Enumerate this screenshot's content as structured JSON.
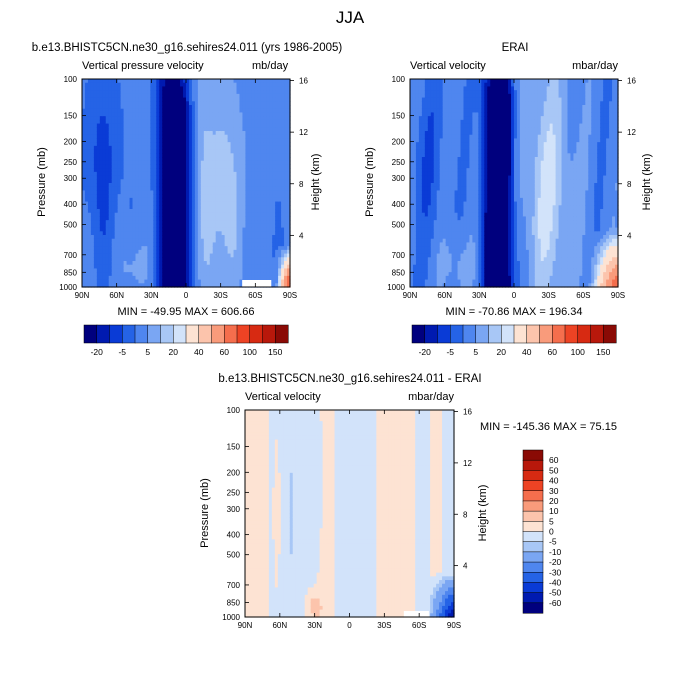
{
  "page": {
    "main_title": "JJA"
  },
  "colors": {
    "negative": [
      "#00007e",
      "#001ab0",
      "#0a3bd6",
      "#2563e6",
      "#4f86ef",
      "#7aa6f3",
      "#a8c7f6",
      "#d2e3fa"
    ],
    "positive": [
      "#fde3d3",
      "#fcc4ac",
      "#f99b7b",
      "#f56e4d",
      "#ed4324",
      "#d72a12",
      "#b8180b",
      "#8a0a05"
    ],
    "frame": "#000000"
  },
  "chart_data": [
    {
      "type": "heatmap",
      "panel": "model",
      "title": "b.e13.BHISTC5CN.ne30_g16.sehires24.011 (yrs 1986-2005)",
      "left_label": "Vertical pressure velocity",
      "right_label": "mb/day",
      "xlabel": "",
      "ylabel": "Pressure (mb)",
      "y2label": "Height (km)",
      "x_ticks": [
        "90N",
        "60N",
        "30N",
        "0",
        "30S",
        "60S",
        "90S"
      ],
      "x_range": [
        90,
        -90
      ],
      "y_ticks": [
        "100",
        "150",
        "200",
        "250",
        "300",
        "400",
        "500",
        "700",
        "850",
        "1000"
      ],
      "y_range": [
        100,
        1000
      ],
      "y_scale": "log",
      "y2_ticks": [
        "16",
        "12",
        "8",
        "4"
      ],
      "stats": "MIN = -49.95   MAX = 606.66",
      "colorbar_labels": [
        "-20",
        "-5",
        "5",
        "20",
        "40",
        "60",
        "100",
        "150"
      ]
    },
    {
      "type": "heatmap",
      "panel": "reanalysis",
      "title": "ERAI",
      "left_label": "Vertical velocity",
      "right_label": "mbar/day",
      "xlabel": "",
      "ylabel": "Pressure (mb)",
      "y2label": "Height (km)",
      "x_ticks": [
        "90N",
        "60N",
        "30N",
        "0",
        "30S",
        "60S",
        "90S"
      ],
      "x_range": [
        90,
        -90
      ],
      "y_ticks": [
        "100",
        "150",
        "200",
        "250",
        "300",
        "400",
        "500",
        "700",
        "850",
        "1000"
      ],
      "y_range": [
        100,
        1000
      ],
      "y_scale": "log",
      "y2_ticks": [
        "16",
        "12",
        "8",
        "4"
      ],
      "stats": "MIN = -70.86   MAX = 196.34",
      "colorbar_labels": [
        "-20",
        "-5",
        "5",
        "20",
        "40",
        "60",
        "100",
        "150"
      ]
    },
    {
      "type": "heatmap",
      "panel": "difference",
      "title": "b.e13.BHISTC5CN.ne30_g16.sehires24.011 - ERAI",
      "left_label": "Vertical velocity",
      "right_label": "mbar/day",
      "xlabel": "",
      "ylabel": "Pressure (mb)",
      "y2label": "Height (km)",
      "x_ticks": [
        "90N",
        "60N",
        "30N",
        "0",
        "30S",
        "60S",
        "90S"
      ],
      "x_range": [
        90,
        -90
      ],
      "y_ticks": [
        "100",
        "150",
        "200",
        "250",
        "300",
        "400",
        "500",
        "700",
        "850",
        "1000"
      ],
      "y_range": [
        100,
        1000
      ],
      "y_scale": "log",
      "y2_ticks": [
        "16",
        "12",
        "8",
        "4"
      ],
      "stats": "MIN = -145.36   MAX =  75.15",
      "colorbar_labels": [
        "60",
        "50",
        "40",
        "30",
        "20",
        "10",
        "5",
        "0",
        "-5",
        "-10",
        "-20",
        "-30",
        "-40",
        "-50",
        "-60"
      ]
    }
  ]
}
